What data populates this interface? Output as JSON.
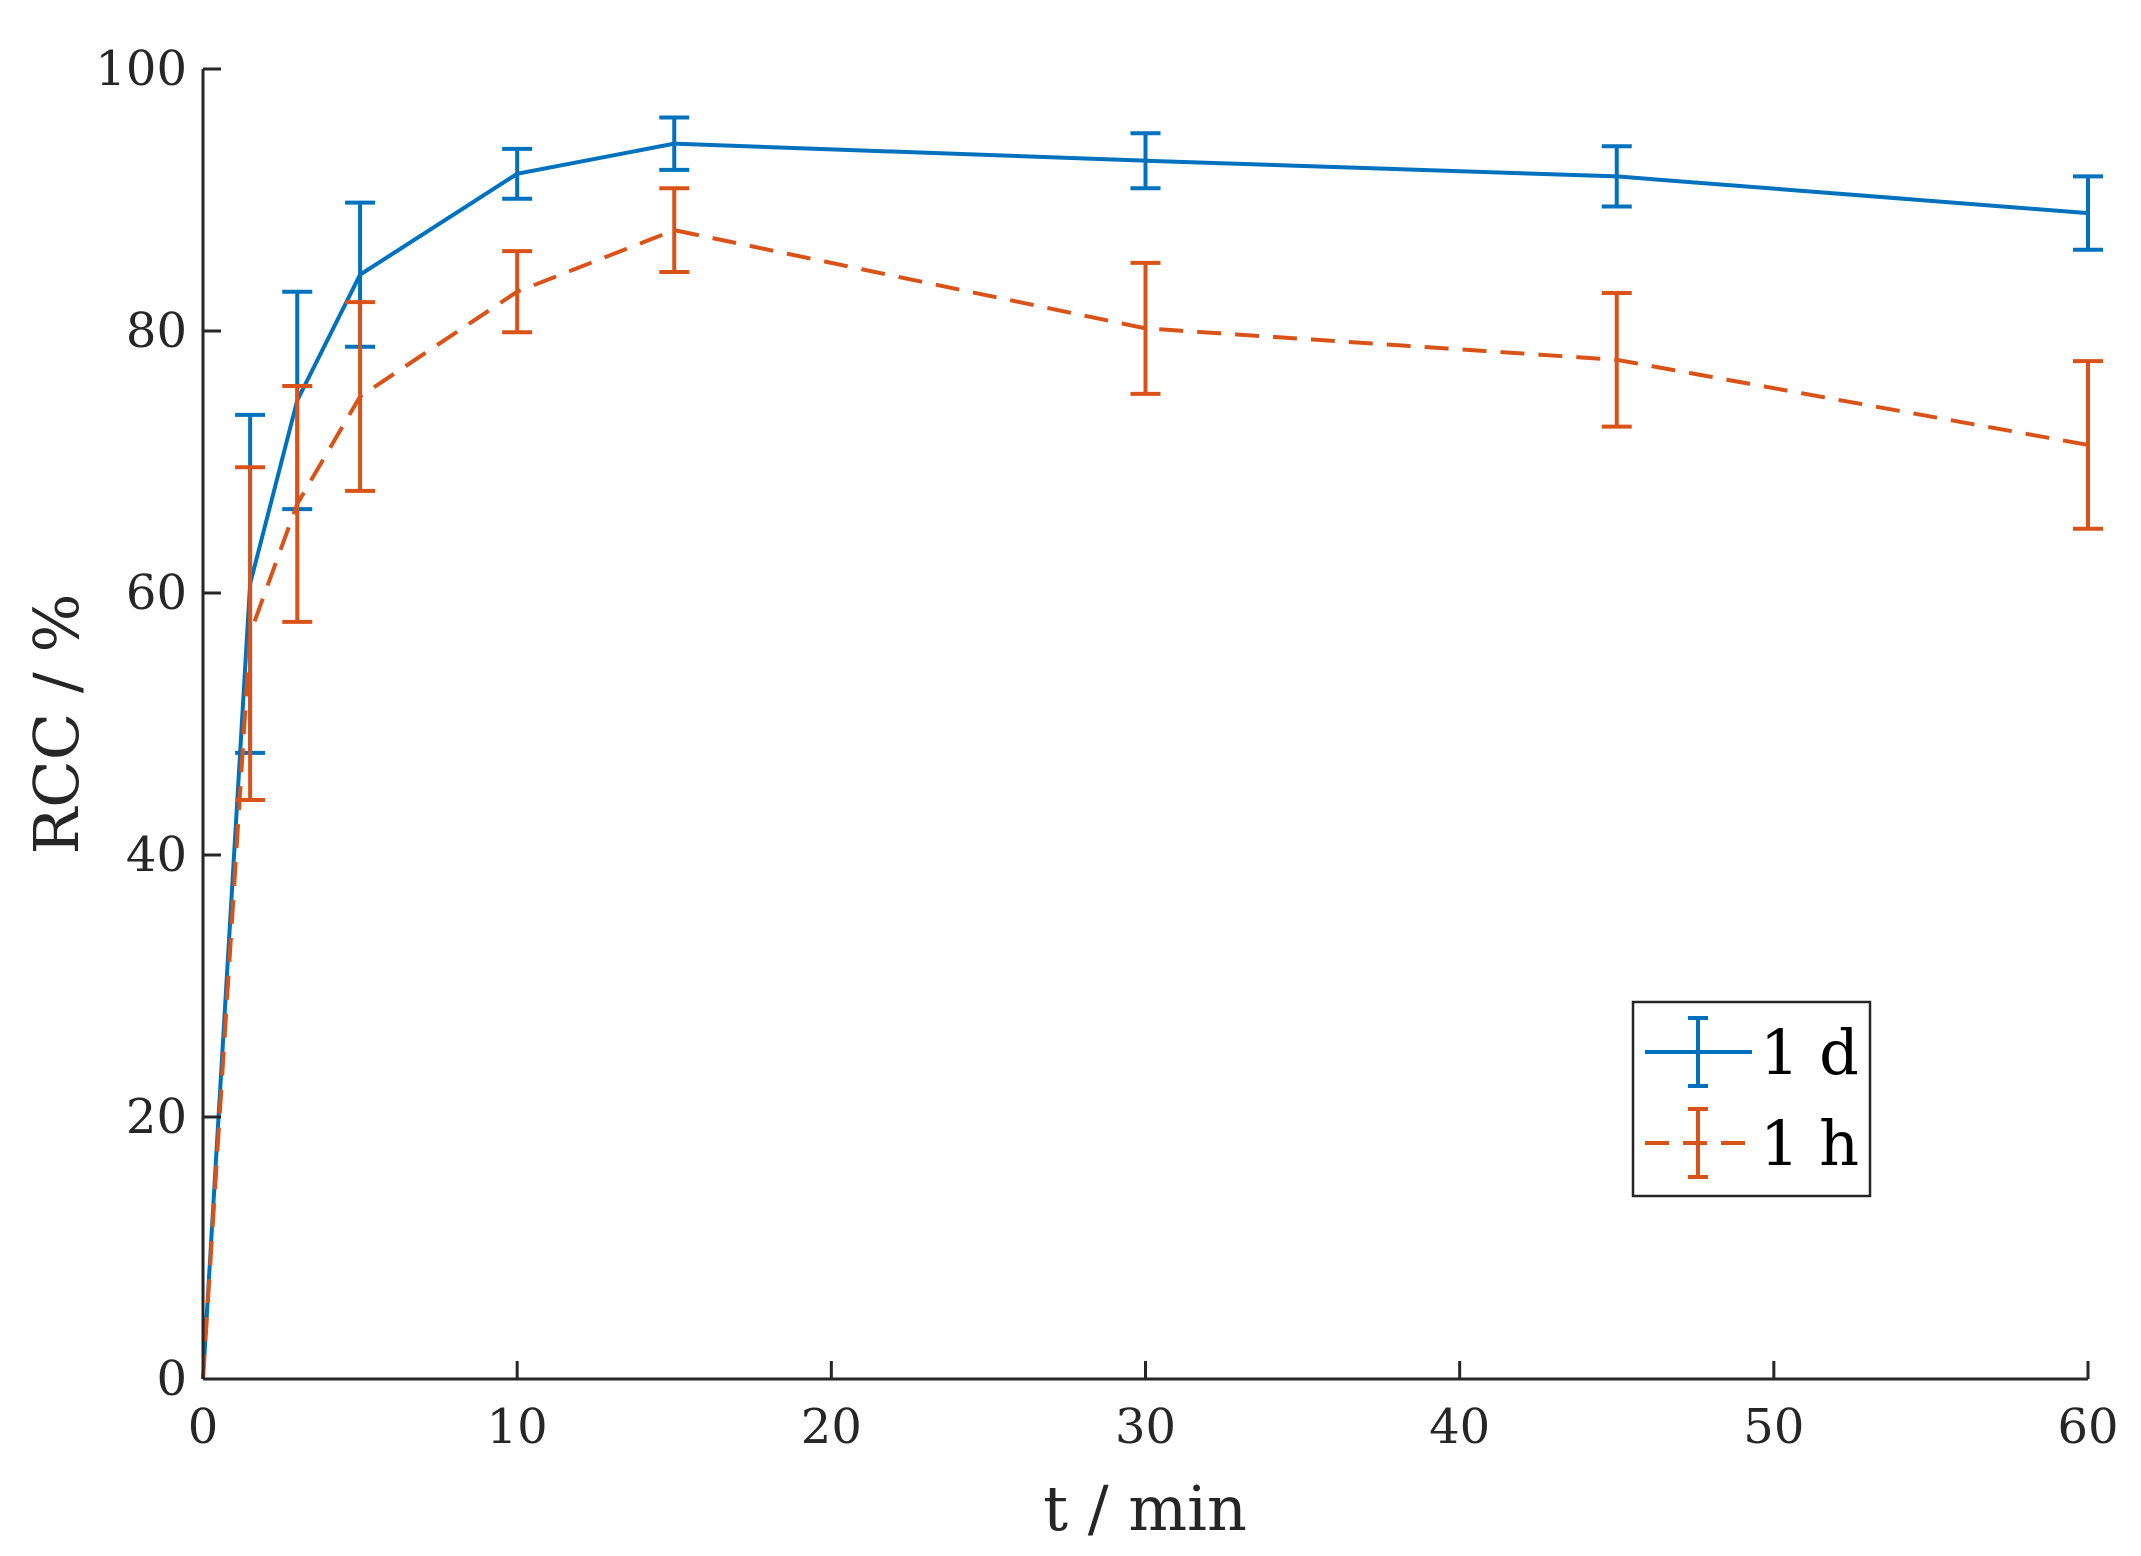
{
  "chart_data": {
    "type": "line",
    "xlabel": "t / min",
    "ylabel": "RCC / %",
    "xlim": [
      0,
      60
    ],
    "ylim": [
      0,
      100
    ],
    "xticks": [
      0,
      10,
      20,
      30,
      40,
      50,
      60
    ],
    "yticks": [
      0,
      20,
      40,
      60,
      80,
      100
    ],
    "grid": false,
    "legend_position": "lower-right",
    "series": [
      {
        "name": "1 d",
        "color": "#0072BD",
        "dash": "solid",
        "x": [
          0,
          1.5,
          3,
          5,
          10,
          15,
          30,
          45,
          60
        ],
        "y": [
          0,
          60.7,
          74.7,
          84.3,
          92.0,
          94.3,
          93.0,
          91.8,
          89.0
        ],
        "err": [
          0,
          12.9,
          8.3,
          5.5,
          1.9,
          2.0,
          2.1,
          2.3,
          2.8
        ]
      },
      {
        "name": "1 h",
        "color": "#D95319",
        "dash": "dashed",
        "x": [
          0,
          1.5,
          3,
          5,
          10,
          15,
          30,
          45,
          60
        ],
        "y": [
          0,
          56.9,
          66.8,
          75.0,
          83.0,
          87.7,
          80.2,
          77.8,
          71.3
        ],
        "err": [
          0,
          12.7,
          9.0,
          7.2,
          3.1,
          3.2,
          5.0,
          5.1,
          6.4
        ]
      }
    ]
  }
}
